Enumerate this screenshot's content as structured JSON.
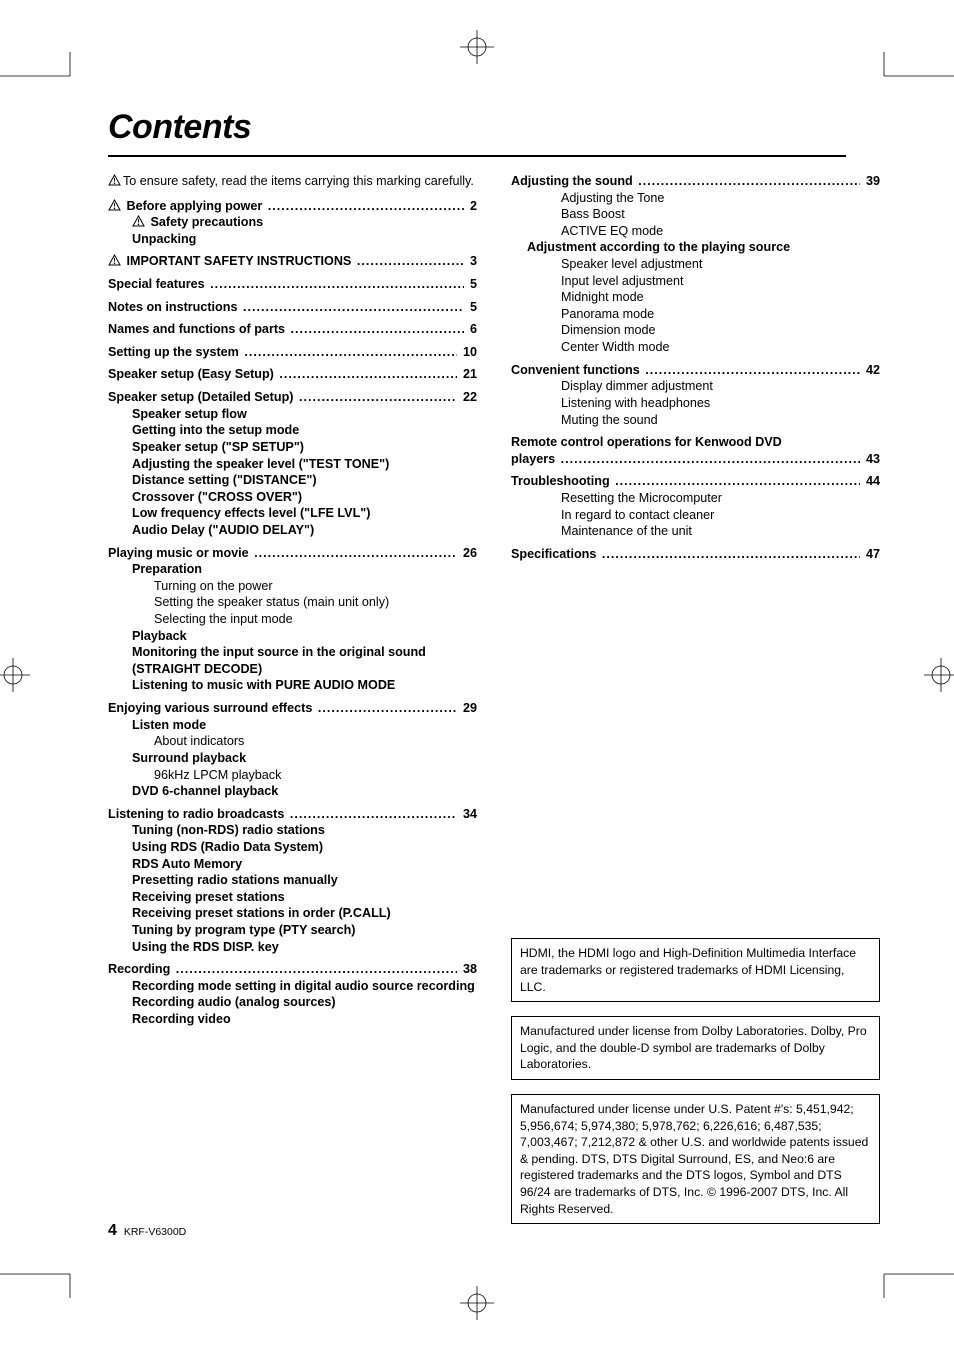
{
  "title": "Contents",
  "safety_note": "To ensure safety, read the items carrying this marking carefully.",
  "left_column": [
    {
      "title": "Before applying power",
      "page": "2",
      "warn": true,
      "subs": [
        {
          "text": "Safety precautions",
          "warn": true,
          "level": 1,
          "bold": true
        },
        {
          "text": "Unpacking",
          "level": 1,
          "bold": true
        }
      ]
    },
    {
      "title": "IMPORTANT SAFETY INSTRUCTIONS",
      "page": "3",
      "warn": true,
      "subs": []
    },
    {
      "title": "Special features",
      "page": "5",
      "subs": []
    },
    {
      "title": "Notes on instructions",
      "page": "5",
      "subs": []
    },
    {
      "title": "Names and functions of parts",
      "page": "6",
      "subs": []
    },
    {
      "title": "Setting up the system",
      "page": "10",
      "subs": []
    },
    {
      "title": "Speaker setup (Easy Setup)",
      "page": "21",
      "subs": []
    },
    {
      "title": "Speaker setup (Detailed Setup)",
      "page": "22",
      "subs": [
        {
          "text": "Speaker setup flow",
          "level": 1,
          "bold": true
        },
        {
          "text": "Getting into the setup mode",
          "level": 1,
          "bold": true
        },
        {
          "text": "Speaker setup (\"SP SETUP\")",
          "level": 1,
          "bold": true
        },
        {
          "text": "Adjusting the speaker level (\"TEST TONE\")",
          "level": 1,
          "bold": true
        },
        {
          "text": "Distance setting (\"DISTANCE\")",
          "level": 1,
          "bold": true
        },
        {
          "text": "Crossover (\"CROSS OVER\")",
          "level": 1,
          "bold": true
        },
        {
          "text": "Low frequency effects level (\"LFE LVL\")",
          "level": 1,
          "bold": true
        },
        {
          "text": "Audio Delay (\"AUDIO DELAY\")",
          "level": 1,
          "bold": true
        }
      ]
    },
    {
      "title": "Playing music or movie",
      "page": "26",
      "subs": [
        {
          "text": "Preparation",
          "level": 1,
          "bold": true
        },
        {
          "text": "Turning on the power",
          "level": 2
        },
        {
          "text": "Setting the speaker status (main unit only)",
          "level": 2
        },
        {
          "text": "Selecting the input mode",
          "level": 2
        },
        {
          "text": "Playback",
          "level": 1,
          "bold": true
        },
        {
          "text": "Monitoring the input source in the original sound (STRAIGHT DECODE)",
          "level": 1,
          "bold": true,
          "wrap": true
        },
        {
          "text": "Listening to music with PURE AUDIO MODE",
          "level": 1,
          "bold": true
        }
      ]
    },
    {
      "title": "Enjoying various surround effects",
      "page": "29",
      "subs": [
        {
          "text": "Listen mode",
          "level": 1,
          "bold": true
        },
        {
          "text": "About indicators",
          "level": 2
        },
        {
          "text": "Surround playback",
          "level": 1,
          "bold": true
        },
        {
          "text": "96kHz LPCM playback",
          "level": 2
        },
        {
          "text": "DVD 6-channel playback",
          "level": 1,
          "bold": true
        }
      ]
    },
    {
      "title": "Listening to radio broadcasts",
      "page": "34",
      "subs": [
        {
          "text": "Tuning (non-RDS) radio stations",
          "level": 1,
          "bold": true
        },
        {
          "text": "Using RDS (Radio Data System)",
          "level": 1,
          "bold": true
        },
        {
          "text": "RDS Auto Memory",
          "level": 1,
          "bold": true
        },
        {
          "text": "Presetting radio stations manually",
          "level": 1,
          "bold": true
        },
        {
          "text": "Receiving preset stations",
          "level": 1,
          "bold": true
        },
        {
          "text": "Receiving preset stations in order (P.CALL)",
          "level": 1,
          "bold": true
        },
        {
          "text": "Tuning by program type (PTY search)",
          "level": 1,
          "bold": true
        },
        {
          "text": "Using the RDS DISP. key",
          "level": 1,
          "bold": true
        }
      ]
    },
    {
      "title": "Recording",
      "page": "38",
      "subs": [
        {
          "text": "Recording mode setting in digital audio source recording",
          "level": 1,
          "bold": true,
          "wrap": true
        },
        {
          "text": "Recording audio (analog sources)",
          "level": 1,
          "bold": true
        },
        {
          "text": "Recording video",
          "level": 1,
          "bold": true
        }
      ]
    }
  ],
  "right_column": [
    {
      "title": "Adjusting the sound",
      "page": "39",
      "subs": [
        {
          "text": "Adjusting the Tone",
          "level": 1
        },
        {
          "text": "Bass Boost",
          "level": 1
        },
        {
          "text": "ACTIVE EQ mode",
          "level": 1
        },
        {
          "text": "Adjustment according to the playing source",
          "level": 0,
          "bold": true
        },
        {
          "text": "Speaker level adjustment",
          "level": 1
        },
        {
          "text": "Input level adjustment",
          "level": 1
        },
        {
          "text": "Midnight mode",
          "level": 1
        },
        {
          "text": "Panorama mode",
          "level": 1
        },
        {
          "text": "Dimension mode",
          "level": 1
        },
        {
          "text": "Center Width mode",
          "level": 1
        }
      ]
    },
    {
      "title": "Convenient functions",
      "page": "42",
      "subs": [
        {
          "text": "Display dimmer adjustment",
          "level": 1
        },
        {
          "text": "Listening with headphones",
          "level": 1
        },
        {
          "text": "Muting the sound",
          "level": 1
        }
      ]
    },
    {
      "title": "Remote control operations for Kenwood DVD players",
      "page": "43",
      "subs": []
    },
    {
      "title": "Troubleshooting",
      "page": "44",
      "subs": [
        {
          "text": "Resetting the Microcomputer",
          "level": 1
        },
        {
          "text": "In regard to contact cleaner",
          "level": 1
        },
        {
          "text": "Maintenance of the unit",
          "level": 1
        }
      ]
    },
    {
      "title": "Specifications",
      "page": "47",
      "subs": []
    }
  ],
  "notices": [
    "HDMI, the HDMI logo and High-Definition Multimedia Interface are trademarks or registered trademarks of HDMI Licensing, LLC.",
    "Manufactured under license from Dolby Laboratories. Dolby, Pro Logic, and the double-D symbol are trademarks of Dolby Laboratories.",
    "Manufactured under license under U.S. Patent #'s: 5,451,942; 5,956,674; 5,974,380; 5,978,762; 6,226,616; 6,487,535; 7,003,467; 7,212,872 & other U.S. and worldwide patents issued & pending. DTS, DTS Digital Surround, ES, and Neo:6 are registered trademarks and the DTS logos, Symbol and DTS 96/24 are trademarks of DTS, Inc. © 1996-2007 DTS, Inc. All Rights Reserved."
  ],
  "footer": {
    "page_number": "4",
    "model": "KRF-V6300D"
  },
  "colors": {
    "text": "#000000",
    "bg": "#ffffff"
  }
}
